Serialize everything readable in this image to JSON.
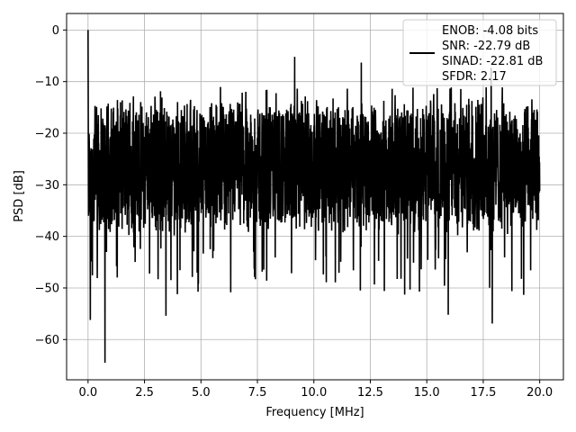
{
  "chart_data": {
    "type": "line",
    "title": "",
    "xlabel": "Frequency [MHz]",
    "ylabel": "PSD [dB]",
    "xlim": [
      -0.95,
      21.05
    ],
    "ylim": [
      -67.8,
      3.2
    ],
    "xticks": [
      0.0,
      2.5,
      5.0,
      7.5,
      10.0,
      12.5,
      15.0,
      17.5,
      20.0
    ],
    "xtick_labels": [
      "0.0",
      "2.5",
      "5.0",
      "7.5",
      "10.0",
      "12.5",
      "15.0",
      "17.5",
      "20.0"
    ],
    "yticks": [
      0,
      -10,
      -20,
      -30,
      -40,
      -50,
      -60
    ],
    "ytick_labels": [
      "0",
      "−10",
      "−20",
      "−30",
      "−40",
      "−50",
      "−60"
    ],
    "grid": true,
    "legend_position": "top-right",
    "series": [
      {
        "name": "ENOB: -4.08 bits\nSNR: -22.79 dB\nSINAD: -22.81 dB\nSFDR: 2.17",
        "color": "#000000",
        "summary": {
          "x_range": [
            0,
            20
          ],
          "peak": {
            "x": 0.0,
            "y": 0.0
          },
          "typical_band_db": [
            -40,
            -15
          ],
          "notable_minima": [
            {
              "x": 0.75,
              "y": -64.5
            },
            {
              "x": 0.1,
              "y": -56.2
            },
            {
              "x": 17.9,
              "y": -56.9
            },
            {
              "x": 15.95,
              "y": -55.2
            },
            {
              "x": 3.45,
              "y": -55.4
            }
          ],
          "notable_maxima": [
            {
              "x": 9.15,
              "y": -5.2
            },
            {
              "x": 12.1,
              "y": -6.3
            },
            {
              "x": 17.85,
              "y": -7.3
            }
          ]
        }
      }
    ],
    "legend_lines": [
      "ENOB: -4.08 bits",
      "SNR: -22.79 dB",
      "SINAD: -22.81 dB",
      "SFDR: 2.17"
    ]
  }
}
